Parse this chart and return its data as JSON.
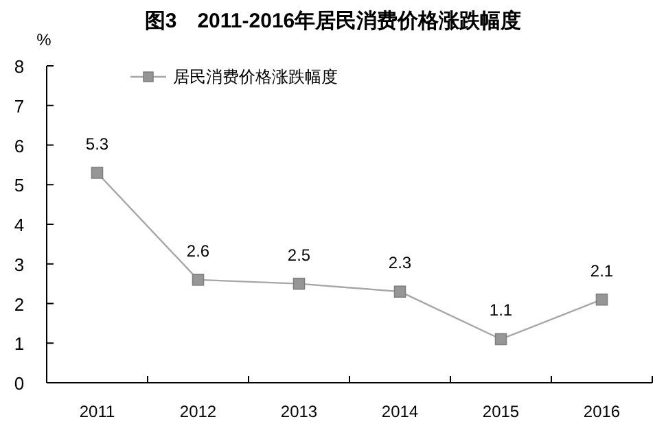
{
  "chart_data": {
    "type": "line",
    "title": "图3　2011-2016年居民消费价格涨跌幅度",
    "ylabel": "%",
    "categories": [
      "2011",
      "2012",
      "2013",
      "2014",
      "2015",
      "2016"
    ],
    "series": [
      {
        "name": "居民消费价格涨跌幅度",
        "color": "#969696",
        "values": [
          5.3,
          2.6,
          2.5,
          2.3,
          1.1,
          2.1
        ]
      }
    ],
    "ylim": [
      0,
      8
    ],
    "yticks": [
      0,
      1,
      2,
      3,
      4,
      5,
      6,
      7,
      8
    ],
    "data_labels": true,
    "legend": "top left",
    "marker": "square",
    "grid": false
  }
}
